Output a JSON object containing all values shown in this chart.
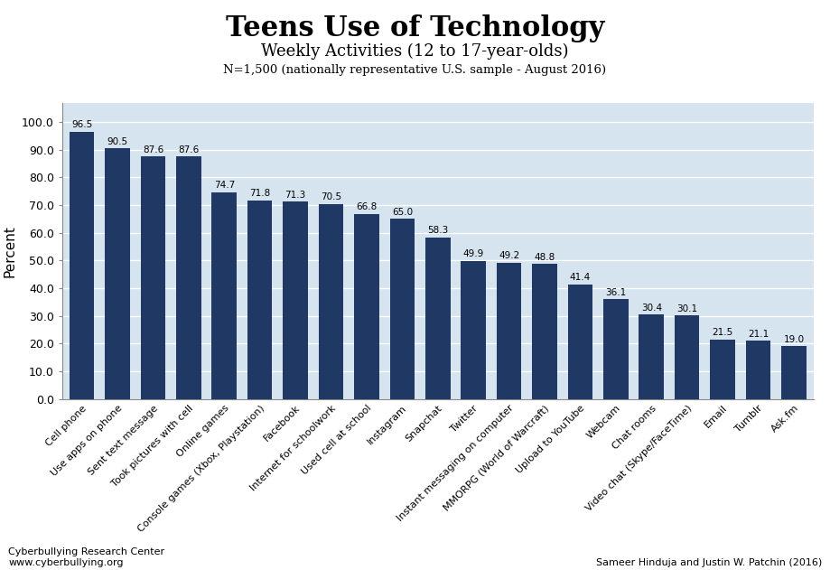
{
  "title": "Teens Use of Technology",
  "subtitle": "Weekly Activities (12 to 17-year-olds)",
  "subtitle2": "N=1,500 (nationally representative U.S. sample - August 2016)",
  "ylabel": "Percent",
  "categories": [
    "Cell phone",
    "Use apps on phone",
    "Sent text message",
    "Took pictures with cell",
    "Online games",
    "Console games (Xbox, Playstation)",
    "Facebook",
    "Internet for schoolwork",
    "Used cell at school",
    "Instagram",
    "Snapchat",
    "Twitter",
    "Instant messaging on computer",
    "MMORPG (World of Warcraft)",
    "Upload to YouTube",
    "Webcam",
    "Chat rooms",
    "Video chat (Skype/FaceTime)",
    "Email",
    "Tumblr",
    "Ask.fm"
  ],
  "values": [
    96.5,
    90.5,
    87.6,
    87.6,
    74.7,
    71.8,
    71.3,
    70.5,
    66.8,
    65.0,
    58.3,
    49.9,
    49.2,
    48.8,
    41.4,
    36.1,
    30.4,
    30.1,
    21.5,
    21.1,
    19.0
  ],
  "bar_color": "#1F3864",
  "background_color": "#D6E4F0",
  "ylim": [
    0,
    107
  ],
  "yticks": [
    0.0,
    10.0,
    20.0,
    30.0,
    40.0,
    50.0,
    60.0,
    70.0,
    80.0,
    90.0,
    100.0
  ],
  "footer_left": "Cyberbullying Research Center\nwww.cyberbullying.org",
  "footer_right": "Sameer Hinduja and Justin W. Patchin (2016)",
  "title_fontsize": 22,
  "subtitle_fontsize": 13,
  "subtitle2_fontsize": 9.5,
  "ylabel_fontsize": 11,
  "ytick_fontsize": 9,
  "xtick_fontsize": 8,
  "value_label_fontsize": 7.5,
  "footer_fontsize": 8
}
